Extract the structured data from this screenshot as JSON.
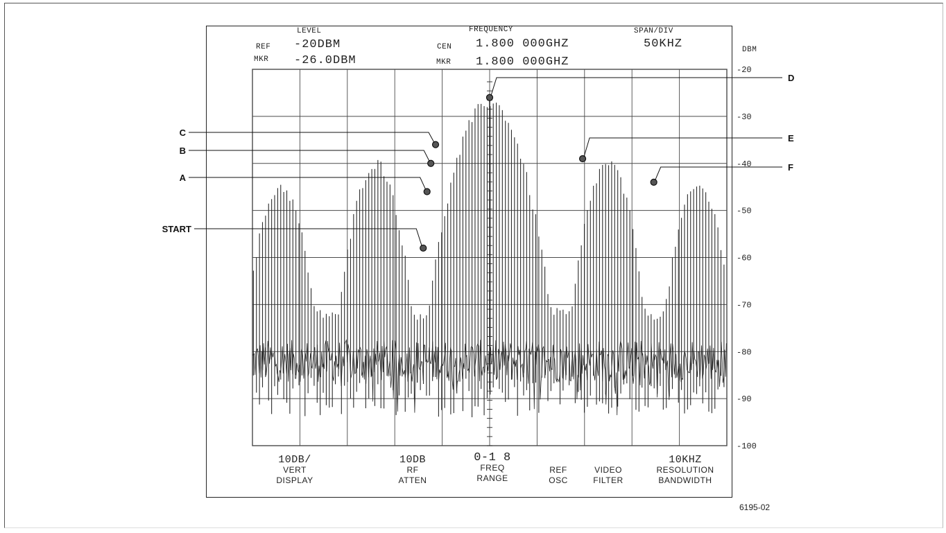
{
  "header": {
    "level_heading": "LEVEL",
    "frequency_heading": "FREQUENCY",
    "span_heading": "SPAN/DIV",
    "ref_label": "REF",
    "ref_level": "-20DBM",
    "mkr_label": "MKR",
    "mkr_level": "-26.0DBM",
    "cen_label": "CEN",
    "cen_freq": "1.800 000GHZ",
    "mkr_freq_label": "MKR",
    "mkr_freq": "1.800 000GHZ",
    "span_value": "50KHZ",
    "unit": "DBM"
  },
  "controls": {
    "vert_value": "10DB/",
    "vert_line1": "VERT",
    "vert_line2": "DISPLAY",
    "atten_value": "10DB",
    "atten_line1": "RF",
    "atten_line2": "ATTEN",
    "range_value": "0-1 8",
    "range_line1": "FREQ",
    "range_line2": "RANGE",
    "refosc_line1": "REF",
    "refosc_line2": "OSC",
    "video_line1": "VIDEO",
    "video_line2": "FILTER",
    "rbw_value": "10KHZ",
    "rbw_line1": "RESOLUTION",
    "rbw_line2": "BANDWIDTH"
  },
  "figure_id": "6195-02",
  "colors": {
    "trace": "#2a2a2a",
    "grid": "#4a4a4a",
    "ink": "#111111"
  },
  "chart_data": {
    "type": "line",
    "title": "",
    "xlabel": "",
    "ylabel": "DBM",
    "x_divisions": 10,
    "x_unit_per_div": "50KHZ",
    "center_freq_ghz": 1.8,
    "xlim_khz": [
      -250,
      250
    ],
    "ylim": [
      -100,
      -20
    ],
    "y_ticks": [
      -20,
      -30,
      -40,
      -50,
      -60,
      -70,
      -80,
      -90,
      -100
    ],
    "y_tick_labels": [
      "-20",
      "-30",
      "-40",
      "-50",
      "-60",
      "-70",
      "-80",
      "-90",
      "-100"
    ],
    "grid": true,
    "noise_floor_dbm": -82,
    "carrier": {
      "offset_khz": 0,
      "level_dbm": -26
    },
    "lobe_envelope": [
      {
        "center_khz": -220,
        "peak_dbm": -45
      },
      {
        "center_khz": -120,
        "peak_dbm": -40
      },
      {
        "center_khz": 0,
        "peak_dbm": -27
      },
      {
        "center_khz": 125,
        "peak_dbm": -40
      },
      {
        "center_khz": 220,
        "peak_dbm": -45
      }
    ],
    "markers": [
      {
        "label": "START",
        "offset_khz": -70,
        "level_dbm": -58
      },
      {
        "label": "A",
        "offset_khz": -66,
        "level_dbm": -46
      },
      {
        "label": "B",
        "offset_khz": -62,
        "level_dbm": -40
      },
      {
        "label": "C",
        "offset_khz": -57,
        "level_dbm": -36
      },
      {
        "label": "D",
        "offset_khz": 0,
        "level_dbm": -26
      },
      {
        "label": "E",
        "offset_khz": 98,
        "level_dbm": -39
      },
      {
        "label": "F",
        "offset_khz": 173,
        "level_dbm": -44
      }
    ]
  }
}
